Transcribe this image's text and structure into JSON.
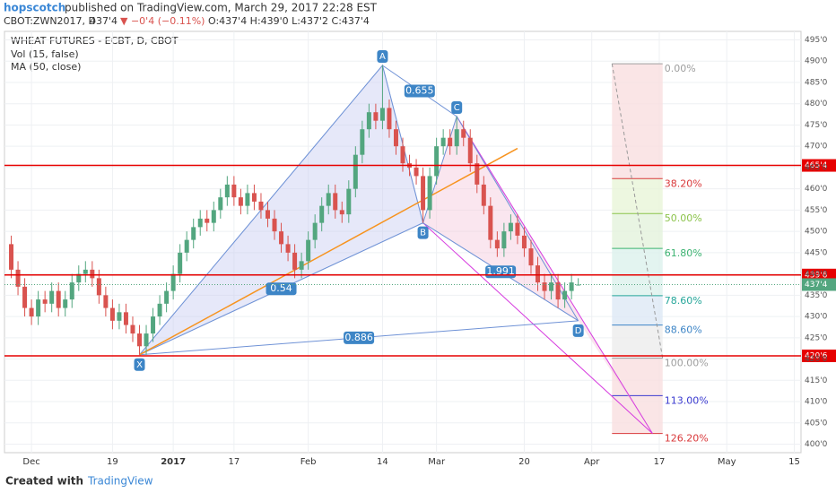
{
  "header": {
    "author": "hopscotch",
    "published": "published on TradingView.com, March 29, 2017 22:28 EST",
    "symbol": "CBOT:ZWN2017, D",
    "price": "437'4",
    "change": "▼ −0'4 (−0.11%)",
    "ohlc": "O:437'4 H:439'0 L:437'2 C:437'4"
  },
  "chart_data": {
    "type": "candlestick",
    "title": "WHEAT FUTURES - ECBT, D, CBOT",
    "indicators": [
      "Vol (15, false)",
      "MA (50, close)"
    ],
    "up_color": "#53a67f",
    "down_color": "#d9534f",
    "open": [
      447,
      441,
      437,
      432,
      430,
      434,
      433,
      436,
      432,
      434,
      438,
      440,
      441,
      439,
      435,
      432,
      429,
      431,
      428,
      426,
      423,
      426,
      430,
      433,
      436,
      440,
      445,
      448,
      451,
      453,
      452,
      455,
      458,
      461,
      458,
      456,
      459,
      457,
      455,
      453,
      450,
      447,
      445,
      441,
      443,
      448,
      452,
      456,
      459,
      455,
      454,
      460,
      468,
      474,
      478,
      476,
      479,
      474,
      470,
      466,
      465,
      463,
      455,
      463,
      470,
      472,
      470,
      474,
      472,
      466,
      461,
      456,
      448,
      446,
      450,
      452,
      449,
      446,
      442,
      438,
      436,
      438,
      434,
      436,
      437.5
    ],
    "high": [
      449,
      443,
      439,
      434,
      436,
      436,
      438,
      438,
      436,
      440,
      442,
      443,
      443,
      441,
      437,
      434,
      433,
      433,
      430,
      428,
      428,
      432,
      435,
      438,
      442,
      447,
      450,
      453,
      455,
      455,
      457,
      460,
      463,
      463,
      460,
      461,
      461,
      459,
      457,
      455,
      452,
      449,
      447,
      445,
      450,
      454,
      458,
      461,
      461,
      457,
      462,
      470,
      476,
      480,
      480,
      489,
      481,
      476,
      472,
      468,
      467,
      465,
      465,
      472,
      474,
      474,
      477,
      476,
      474,
      468,
      463,
      458,
      450,
      452,
      454,
      454,
      451,
      448,
      444,
      440,
      440,
      440,
      438,
      440,
      439
    ],
    "low": [
      439,
      435,
      430,
      428,
      428,
      431,
      431,
      430,
      430,
      432,
      436,
      438,
      437,
      433,
      430,
      427,
      427,
      426,
      424,
      421,
      421,
      424,
      428,
      431,
      434,
      438,
      443,
      446,
      449,
      450,
      450,
      453,
      456,
      456,
      454,
      454,
      455,
      453,
      451,
      448,
      445,
      443,
      439,
      439,
      441,
      446,
      450,
      454,
      453,
      452,
      452,
      458,
      466,
      472,
      474,
      474,
      472,
      468,
      464,
      463,
      461,
      452,
      453,
      461,
      468,
      468,
      468,
      470,
      464,
      459,
      454,
      446,
      444,
      444,
      448,
      447,
      444,
      440,
      436,
      434,
      434,
      432,
      432,
      434,
      437.25
    ],
    "close": [
      441,
      437,
      432,
      430,
      434,
      433,
      436,
      432,
      434,
      438,
      440,
      441,
      439,
      435,
      432,
      429,
      431,
      428,
      426,
      423,
      426,
      430,
      433,
      436,
      440,
      445,
      448,
      451,
      453,
      452,
      455,
      458,
      461,
      458,
      456,
      459,
      457,
      455,
      453,
      450,
      447,
      445,
      441,
      443,
      448,
      452,
      456,
      459,
      455,
      454,
      460,
      468,
      474,
      478,
      476,
      479,
      474,
      470,
      466,
      465,
      463,
      455,
      463,
      470,
      472,
      470,
      474,
      472,
      466,
      461,
      456,
      448,
      446,
      450,
      452,
      449,
      446,
      442,
      438,
      436,
      438,
      434,
      436,
      438,
      437.5
    ],
    "xlim": [
      -1,
      117
    ],
    "xticks": [
      {
        "value": 3,
        "label": "Dec"
      },
      {
        "value": 15,
        "label": "19"
      },
      {
        "value": 24,
        "label": "2017"
      },
      {
        "value": 33,
        "label": "17"
      },
      {
        "value": 44,
        "label": "Feb"
      },
      {
        "value": 55,
        "label": "14"
      },
      {
        "value": 63,
        "label": "Mar"
      },
      {
        "value": 76,
        "label": "20"
      },
      {
        "value": 86,
        "label": "Apr"
      },
      {
        "value": 96,
        "label": "17"
      },
      {
        "value": 106,
        "label": "May"
      },
      {
        "value": 116,
        "label": "15"
      }
    ],
    "ylim": [
      398,
      497
    ],
    "yticks": [
      {
        "value": 400,
        "label": "400'0"
      },
      {
        "value": 405,
        "label": "405'0"
      },
      {
        "value": 410,
        "label": "410'0"
      },
      {
        "value": 415,
        "label": "415'0"
      },
      {
        "value": 420,
        "label": "420'0"
      },
      {
        "value": 425,
        "label": "425'0"
      },
      {
        "value": 430,
        "label": "430'0"
      },
      {
        "value": 435,
        "label": "435'0"
      },
      {
        "value": 440,
        "label": "440'0"
      },
      {
        "value": 445,
        "label": "445'0"
      },
      {
        "value": 450,
        "label": "450'0"
      },
      {
        "value": 455,
        "label": "455'0"
      },
      {
        "value": 460,
        "label": "460'0"
      },
      {
        "value": 465,
        "label": "465'0"
      },
      {
        "value": 470,
        "label": "470'0"
      },
      {
        "value": 475,
        "label": "475'0"
      },
      {
        "value": 480,
        "label": "480'0"
      },
      {
        "value": 485,
        "label": "485'0"
      },
      {
        "value": 490,
        "label": "490'0"
      },
      {
        "value": 495,
        "label": "495'0"
      }
    ],
    "grid": true,
    "levels": [
      {
        "value": 465.5,
        "label": "465'4"
      },
      {
        "value": 439.75,
        "label": "439'6"
      },
      {
        "value": 420.75,
        "label": "420'6"
      }
    ],
    "last": {
      "value": 437.5,
      "label": "437'4"
    },
    "trendline": {
      "x": [
        19,
        75
      ],
      "y": [
        421,
        469.5
      ],
      "color": "#f7931e"
    },
    "pattern": {
      "points": [
        {
          "label": "X",
          "x": 19,
          "y": 421
        },
        {
          "label": "A",
          "x": 55,
          "y": 489
        },
        {
          "label": "B",
          "x": 61,
          "y": 452
        },
        {
          "label": "C",
          "x": 66,
          "y": 477
        },
        {
          "label": "D",
          "x": 84,
          "y": 429
        }
      ],
      "ratios": [
        "0.655",
        "0.54",
        "0.886",
        "1.991"
      ]
    },
    "fib": [
      {
        "label": "0.00%",
        "value": 489.4,
        "color": "#9e9e9e"
      },
      {
        "label": "38.20%",
        "value": 462.4,
        "color": "#d9383a"
      },
      {
        "label": "50.00%",
        "value": 454.2,
        "color": "#8bc34a"
      },
      {
        "label": "61.80%",
        "value": 446,
        "color": "#3cb371"
      },
      {
        "label": "78.60%",
        "value": 434.9,
        "color": "#26a69a"
      },
      {
        "label": "88.60%",
        "value": 428,
        "color": "#3d85c6"
      },
      {
        "label": "100.00%",
        "value": 420.2,
        "color": "#9e9e9e"
      },
      {
        "label": "113.00%",
        "value": 411.4,
        "color": "#3a3ad0"
      },
      {
        "label": "126.20%",
        "value": 402.5,
        "color": "#d9383a"
      }
    ]
  },
  "footer": {
    "created": "Created with",
    "brand": "TradingView"
  }
}
